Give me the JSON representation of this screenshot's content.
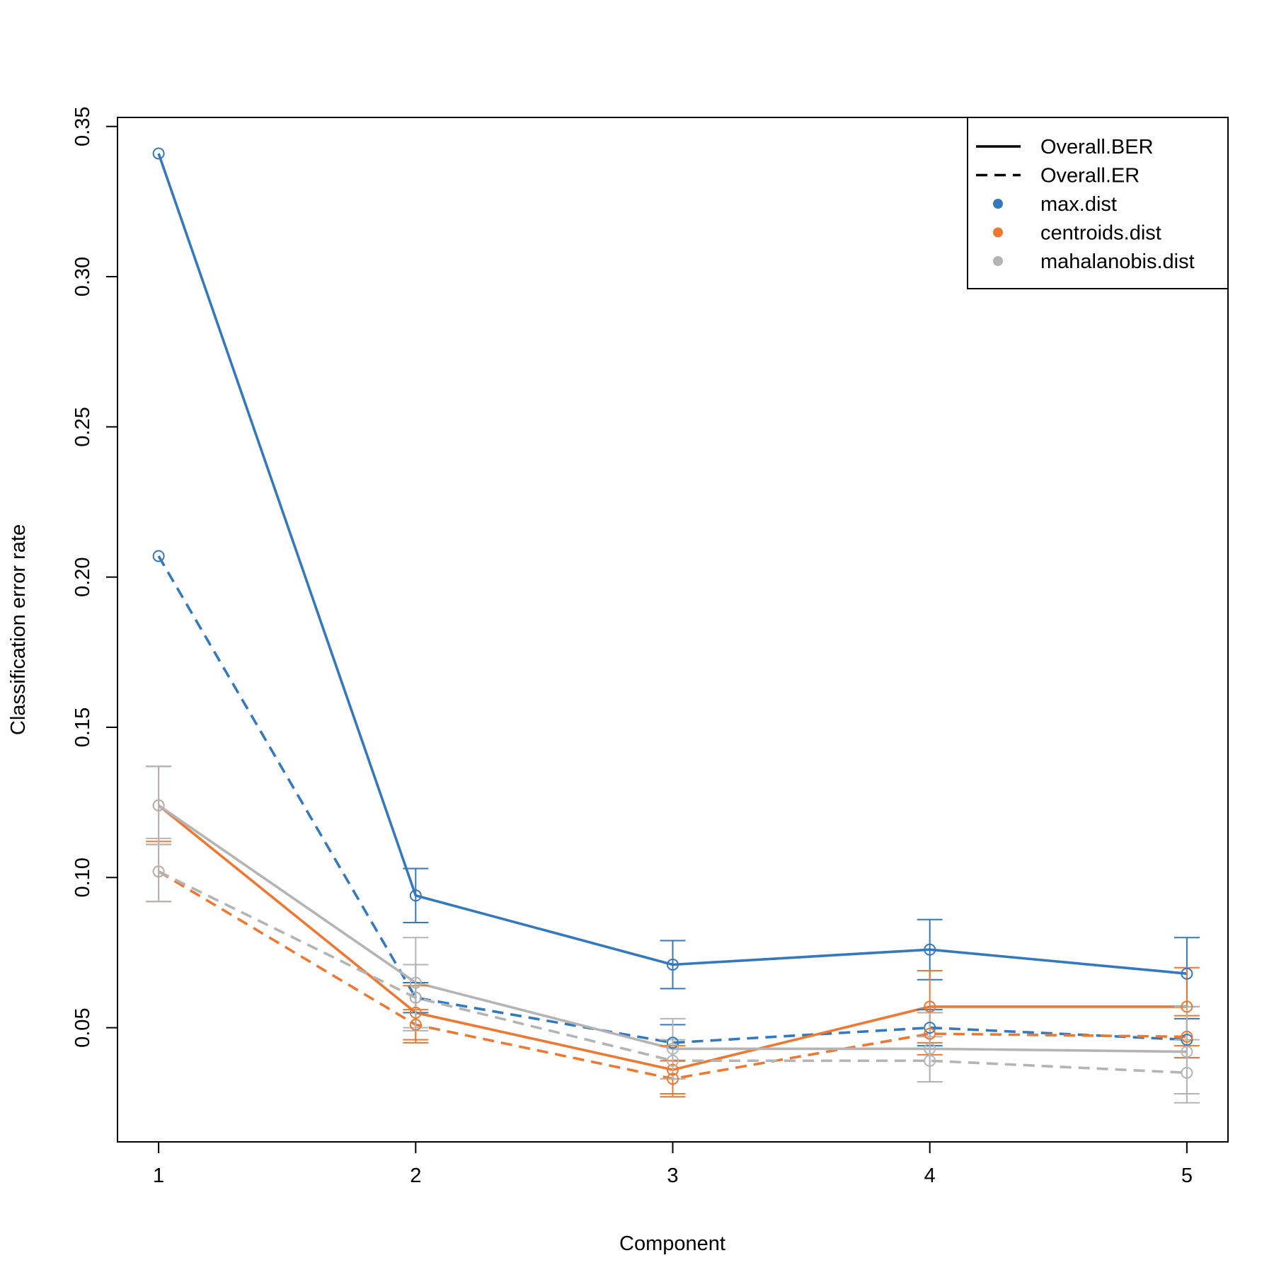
{
  "chart_data": {
    "type": "line",
    "title": "",
    "xlabel": "Component",
    "ylabel": "Classification error rate",
    "x": [
      1,
      2,
      3,
      4,
      5
    ],
    "x_ticks": [
      "1",
      "2",
      "3",
      "4",
      "5"
    ],
    "y_ticks": [
      "0.05",
      "0.10",
      "0.15",
      "0.20",
      "0.25",
      "0.30",
      "0.35"
    ],
    "xlim": [
      0.84,
      5.16
    ],
    "ylim": [
      0.012,
      0.353
    ],
    "grid": false,
    "legend_position": "top-right",
    "legend": [
      {
        "label": "Overall.BER",
        "kind": "line",
        "dash": "solid",
        "color": "#000000"
      },
      {
        "label": "Overall.ER",
        "kind": "line",
        "dash": "dashed",
        "color": "#000000"
      },
      {
        "label": "max.dist",
        "kind": "dot",
        "color": "#3478BE"
      },
      {
        "label": "centroids.dist",
        "kind": "dot",
        "color": "#EE7832"
      },
      {
        "label": "mahalanobis.dist",
        "kind": "dot",
        "color": "#B4B4B4"
      }
    ],
    "series": [
      {
        "measure": "Overall.BER",
        "distance": "max.dist",
        "color": "#3478BE",
        "dash": "solid",
        "values": [
          0.341,
          0.094,
          0.071,
          0.076,
          0.068
        ],
        "error_low": [
          null,
          0.085,
          0.063,
          0.066,
          0.057
        ],
        "error_high": [
          null,
          0.103,
          0.079,
          0.086,
          0.08
        ]
      },
      {
        "measure": "Overall.ER",
        "distance": "max.dist",
        "color": "#3478BE",
        "dash": "dashed",
        "values": [
          0.207,
          0.06,
          0.045,
          0.05,
          0.046
        ],
        "error_low": [
          null,
          0.055,
          0.039,
          0.044,
          0.04
        ],
        "error_high": [
          null,
          0.065,
          0.051,
          0.056,
          0.053
        ]
      },
      {
        "measure": "Overall.BER",
        "distance": "centroids.dist",
        "color": "#EE7832",
        "dash": "solid",
        "values": [
          0.124,
          0.055,
          0.036,
          0.057,
          0.057
        ],
        "error_low": [
          0.111,
          0.045,
          0.028,
          0.045,
          0.044
        ],
        "error_high": [
          0.137,
          0.064,
          0.044,
          0.069,
          0.07
        ]
      },
      {
        "measure": "Overall.ER",
        "distance": "centroids.dist",
        "color": "#EE7832",
        "dash": "dashed",
        "values": [
          0.102,
          0.051,
          0.033,
          0.048,
          0.047
        ],
        "error_low": [
          0.092,
          0.046,
          0.027,
          0.041,
          0.04
        ],
        "error_high": [
          0.112,
          0.056,
          0.039,
          0.055,
          0.054
        ]
      },
      {
        "measure": "Overall.BER",
        "distance": "mahalanobis.dist",
        "color": "#B4B4B4",
        "dash": "solid",
        "values": [
          0.124,
          0.065,
          0.043,
          0.043,
          0.042
        ],
        "error_low": [
          0.111,
          0.05,
          0.033,
          0.032,
          0.028
        ],
        "error_high": [
          0.137,
          0.08,
          0.053,
          0.055,
          0.057
        ]
      },
      {
        "measure": "Overall.ER",
        "distance": "mahalanobis.dist",
        "color": "#B4B4B4",
        "dash": "dashed",
        "values": [
          0.102,
          0.06,
          0.039,
          0.039,
          0.035
        ],
        "error_low": [
          0.092,
          0.049,
          0.033,
          0.032,
          0.025
        ],
        "error_high": [
          0.113,
          0.071,
          0.046,
          0.047,
          0.046
        ]
      }
    ]
  }
}
